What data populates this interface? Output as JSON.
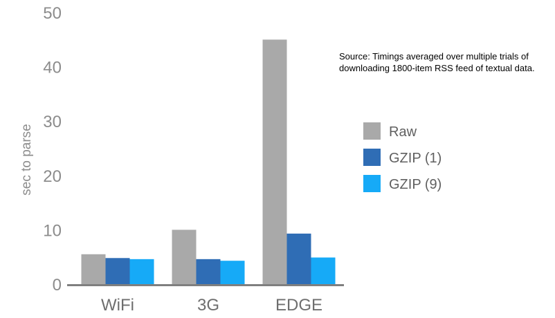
{
  "chart_data": {
    "type": "bar",
    "title": "",
    "xlabel": "",
    "ylabel": "sec to parse",
    "ylim": [
      0,
      50
    ],
    "yticks": [
      0,
      10,
      20,
      30,
      40,
      50
    ],
    "categories": [
      "WiFi",
      "3G",
      "EDGE"
    ],
    "series": [
      {
        "name": "Raw",
        "color": "#a9a9a9",
        "values": [
          5.5,
          10,
          45
        ]
      },
      {
        "name": "GZIP (1)",
        "color": "#2f6db5",
        "values": [
          4.8,
          4.6,
          9.3
        ]
      },
      {
        "name": "GZIP (9)",
        "color": "#16aaf7",
        "values": [
          4.6,
          4.3,
          4.9
        ]
      }
    ],
    "annotation": {
      "line1": "Source: Timings averaged over multiple trials of",
      "line2": "downloading 1800-item RSS feed of textual data."
    },
    "legend_position": "right",
    "grid": false
  }
}
